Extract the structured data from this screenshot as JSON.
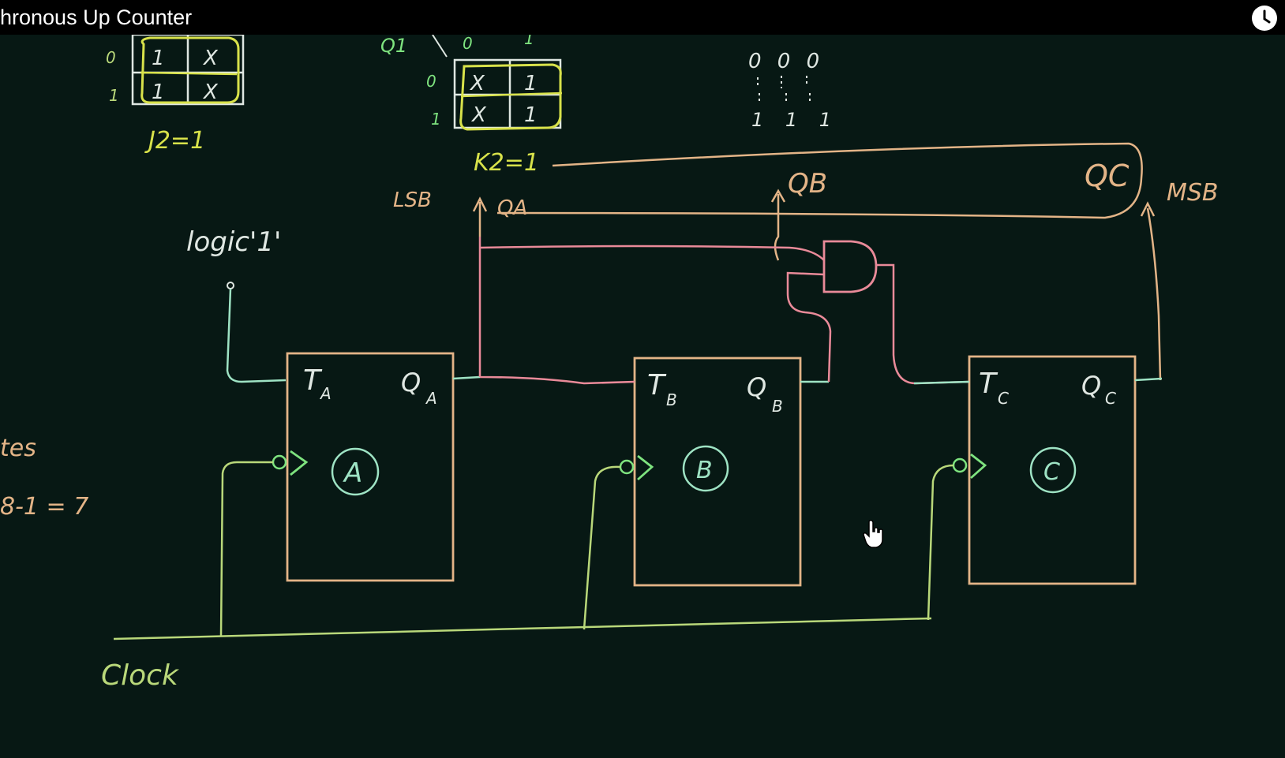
{
  "window": {
    "title": "hronous Up Counter"
  },
  "icons": {
    "watch_later": "clock-icon",
    "cursor": "hand-pointer-icon"
  },
  "colors": {
    "board": "#071814",
    "chalk_green": "#b9d87a",
    "chalk_yellow": "#d8e24a",
    "chalk_white": "#dfe7e2",
    "chalk_orange": "#e3b487",
    "chalk_pink": "#e98a99",
    "chalk_mint": "#9ee3c4",
    "chalk_bright_green": "#7ee37f"
  },
  "kmap_j": {
    "row_labels": [
      "0",
      "1"
    ],
    "cells": [
      [
        "1",
        "X"
      ],
      [
        "1",
        "X"
      ]
    ],
    "result": "J2=1"
  },
  "kmap_k": {
    "var_label": "Q1",
    "col_labels": [
      "0",
      "1"
    ],
    "row_labels": [
      "0",
      "1"
    ],
    "cells": [
      [
        "X",
        "1"
      ],
      [
        "X",
        "1"
      ]
    ],
    "result": "K2=1"
  },
  "state_sequence": {
    "top_digits": "0 0 0",
    "bottom_digits": "1 1 1"
  },
  "labels": {
    "lsb": "LSB",
    "msb": "MSB",
    "qa_out": "QA",
    "qb_out": "QB",
    "qc_out": "QC",
    "logic_one": "logic'1'",
    "clock": "Clock",
    "left_note_1": "tes",
    "left_note_2": "8-1 = 7"
  },
  "flip_flops": [
    {
      "id": "A",
      "t_label": "T",
      "t_sub": "A",
      "q_label": "Q",
      "q_sub": "A"
    },
    {
      "id": "B",
      "t_label": "T",
      "t_sub": "B",
      "q_label": "Q",
      "q_sub": "B"
    },
    {
      "id": "C",
      "t_label": "T",
      "t_sub": "C",
      "q_label": "Q",
      "q_sub": "C"
    }
  ]
}
